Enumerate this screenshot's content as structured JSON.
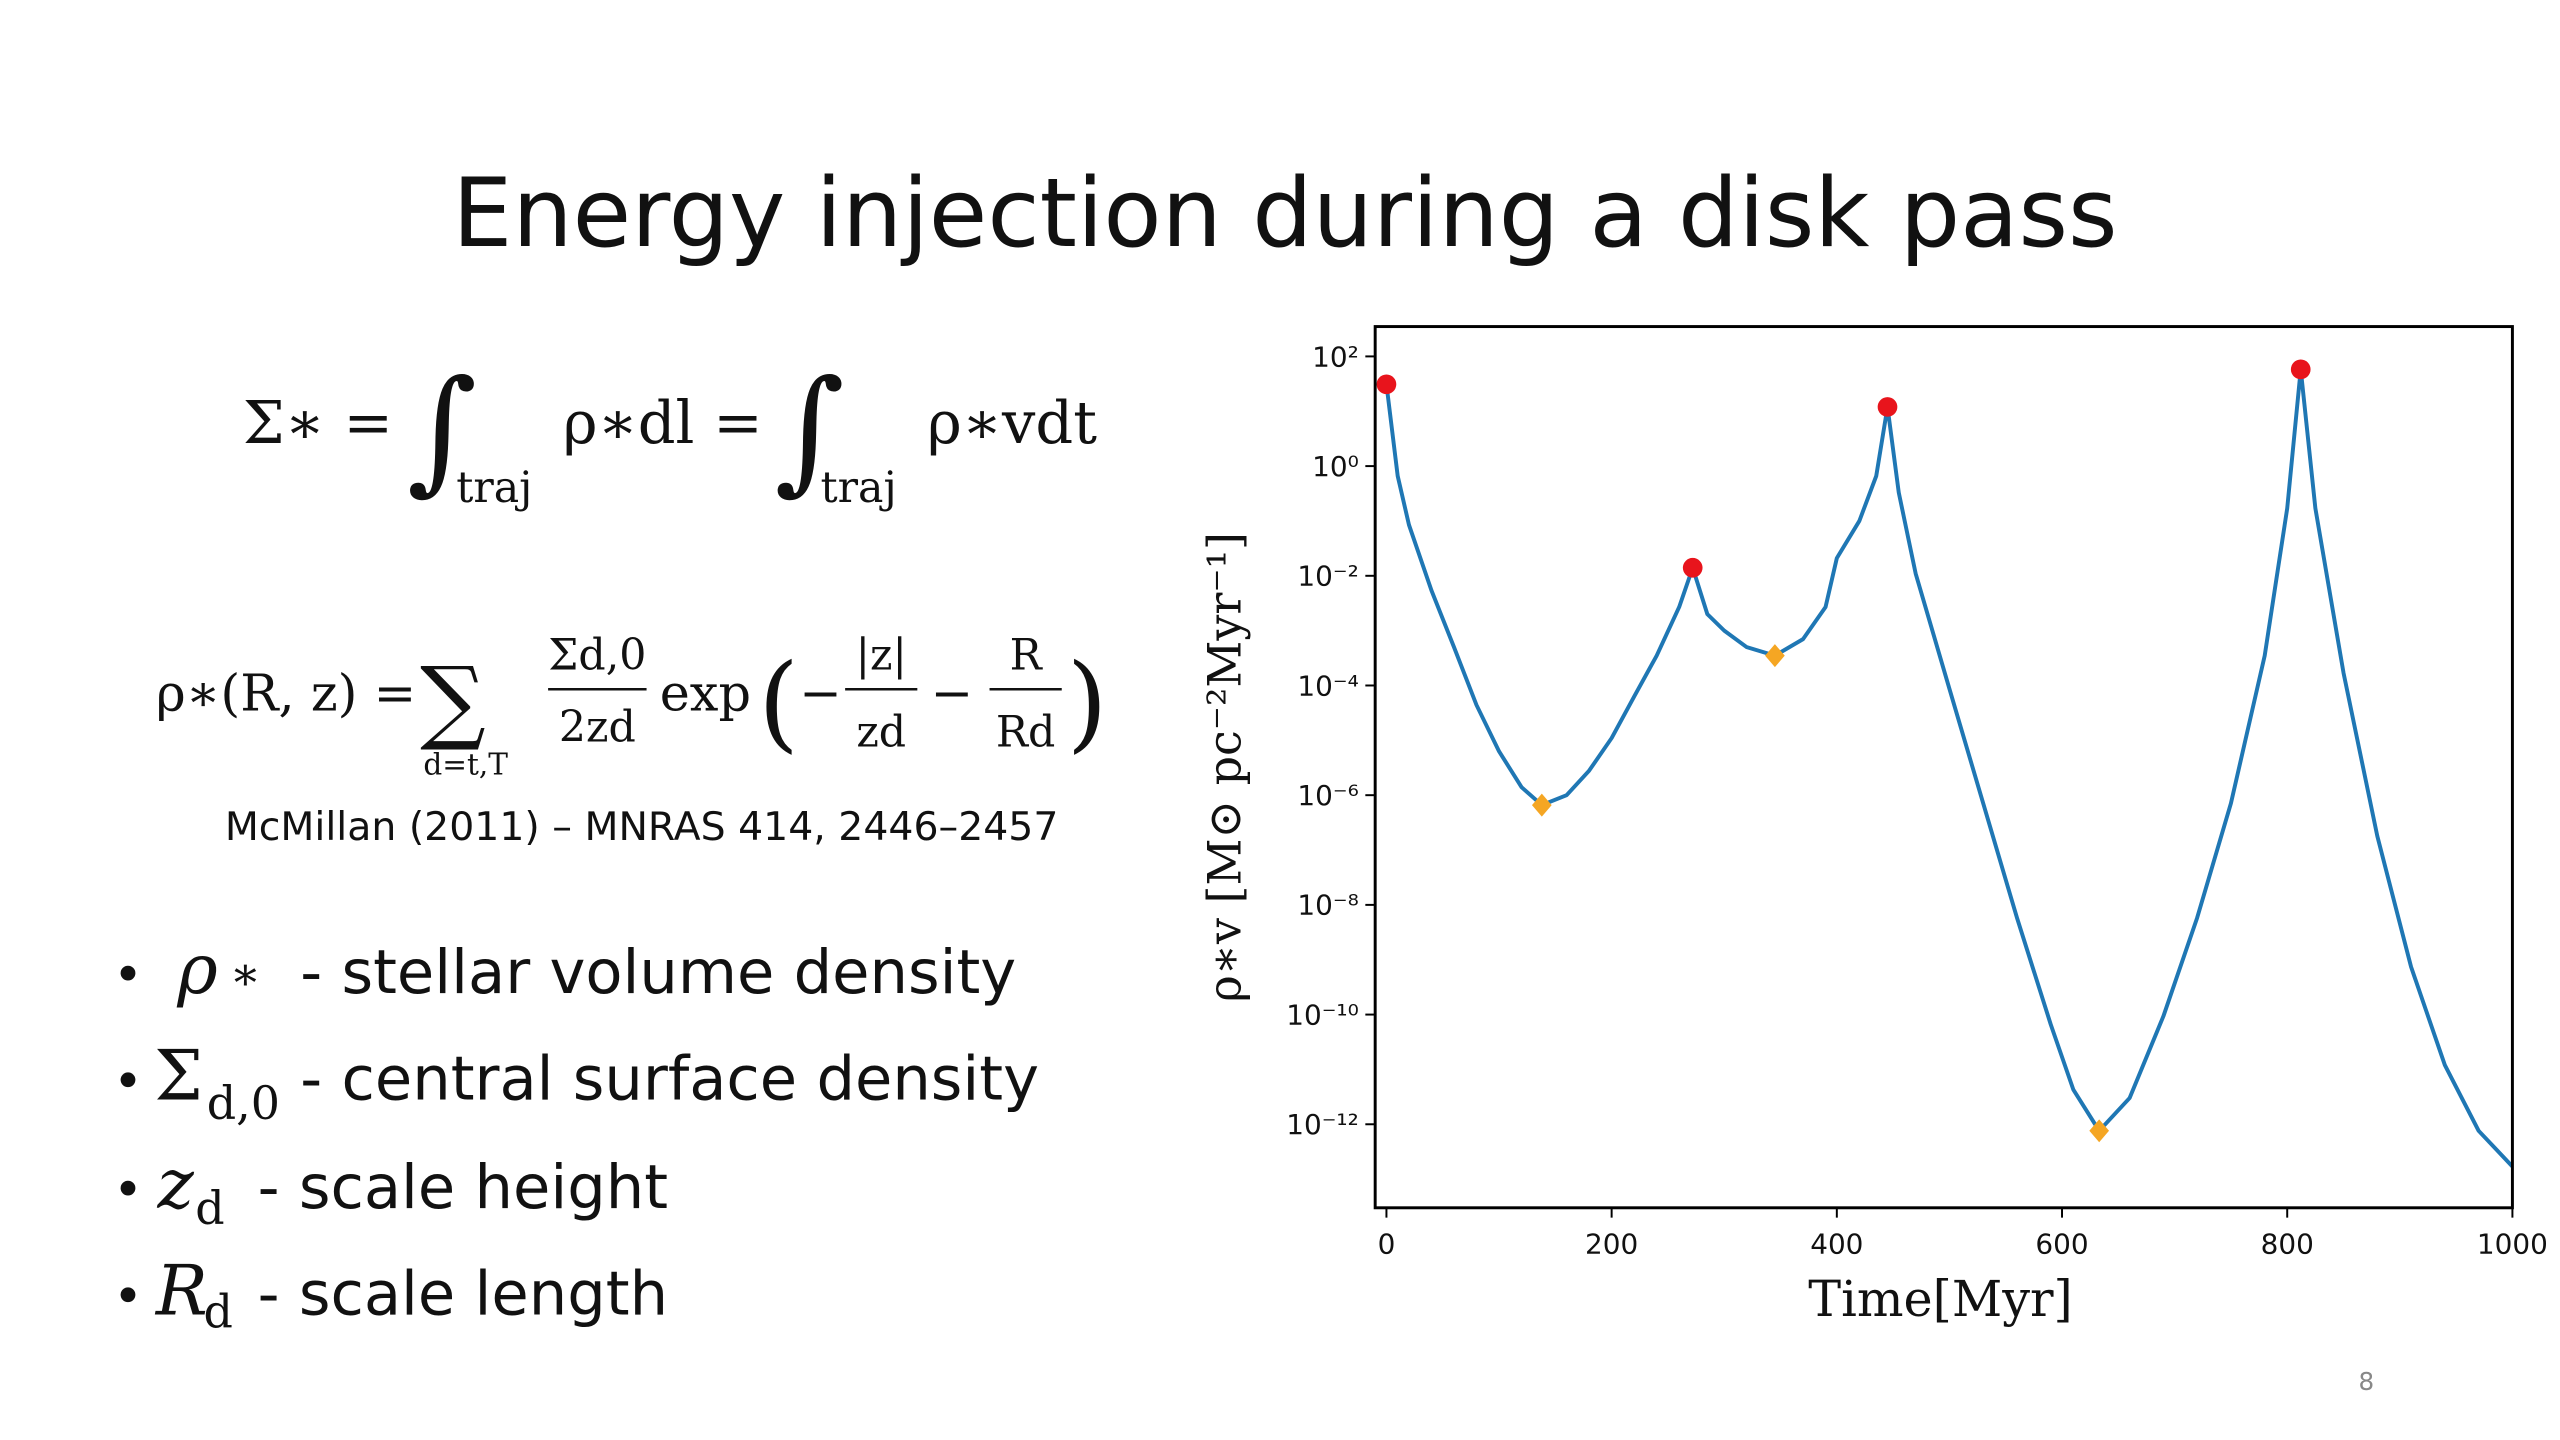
{
  "title": "Energy injection during a disk pass",
  "equation_1": {
    "lhs": "Σ∗ =",
    "integral": "∫",
    "lower_limit": "traj",
    "middle": "ρ∗dl =",
    "right": "ρ∗vdt"
  },
  "equation_2": {
    "lhs": "ρ∗(R, z) =",
    "sum": "∑",
    "sum_index": "d=t,T",
    "frac1_num": "Σd,0",
    "frac1_den": "2zd",
    "exp": "exp",
    "open": "(",
    "minus": "−",
    "frac2_num": "|z|",
    "frac2_den": "zd",
    "frac3_num": "R",
    "frac3_den": "Rd",
    "close": ")"
  },
  "citation": "McMillan (2011) – MNRAS 414, 2446–2457",
  "bullets": [
    {
      "symbol": "ρ",
      "symbol_sub": "∗",
      "text": "- stellar volume density"
    },
    {
      "symbol": "Σ",
      "symbol_sub": "d,0",
      "text": "- central surface density"
    },
    {
      "symbol": "z",
      "symbol_sub": "d",
      "text": "- scale height"
    },
    {
      "symbol": "R",
      "symbol_sub": "d",
      "text": "- scale length"
    }
  ],
  "chart_data": {
    "type": "line",
    "yscale": "log",
    "grid": false,
    "xlabel": "Time[Myr]",
    "ylabel": "ρ∗v [M⊙ pc⁻²Myr⁻¹]",
    "xlim": [
      -10,
      1000
    ],
    "xticks": [
      0,
      200,
      400,
      600,
      800,
      1000
    ],
    "ylim": [
      3e-14,
      350
    ],
    "yticks": [
      {
        "value": 100,
        "label": "10²"
      },
      {
        "value": 1,
        "label": "10⁰"
      },
      {
        "value": 0.01,
        "label": "10⁻²"
      },
      {
        "value": 0.0001,
        "label": "10⁻⁴"
      },
      {
        "value": 1e-06,
        "label": "10⁻⁶"
      },
      {
        "value": 1e-08,
        "label": "10⁻⁸"
      },
      {
        "value": 1e-10,
        "label": "10⁻¹⁰"
      },
      {
        "value": 1e-12,
        "label": "10⁻¹²"
      }
    ],
    "series": [
      {
        "type": "line",
        "color": "#1f77b4",
        "x": [
          0,
          10,
          20,
          40,
          60,
          80,
          100,
          120,
          138,
          160,
          180,
          200,
          220,
          240,
          260,
          272,
          285,
          300,
          320,
          345,
          370,
          390,
          400,
          420,
          435,
          445,
          455,
          470,
          500,
          530,
          560,
          590,
          610,
          633,
          660,
          690,
          720,
          750,
          780,
          800,
          812,
          825,
          850,
          880,
          910,
          940,
          970,
          1000
        ],
        "values": [
          31,
          0.66,
          0.085,
          0.0054,
          0.0005,
          4.4e-05,
          6.3e-06,
          1.4e-06,
          6.6e-07,
          1e-06,
          2.8e-06,
          1.1e-05,
          6.3e-05,
          0.00035,
          0.0027,
          0.014,
          0.002,
          0.001,
          0.0005,
          0.00035,
          0.0007,
          0.0027,
          0.021,
          0.1,
          0.66,
          12,
          0.33,
          0.011,
          8.7e-05,
          7.1e-07,
          5.8e-09,
          6.6e-11,
          4.3e-12,
          7.6e-13,
          3e-12,
          9.3e-11,
          5.8e-09,
          7.1e-07,
          0.00035,
          0.17,
          58,
          0.17,
          0.00017,
          1.8e-07,
          7.4e-10,
          1.2e-11,
          7.6e-13,
          1.7e-13
        ]
      },
      {
        "type": "scatter",
        "marker": "circle",
        "color": "#e8141c",
        "x": [
          0,
          272,
          445,
          812
        ],
        "values": [
          31,
          0.014,
          12,
          58
        ]
      },
      {
        "type": "scatter",
        "marker": "diamond",
        "color": "#f5a623",
        "x": [
          138,
          345,
          633
        ],
        "values": [
          6.6e-07,
          0.00035,
          7.6e-13
        ]
      }
    ]
  },
  "page_number": "8"
}
